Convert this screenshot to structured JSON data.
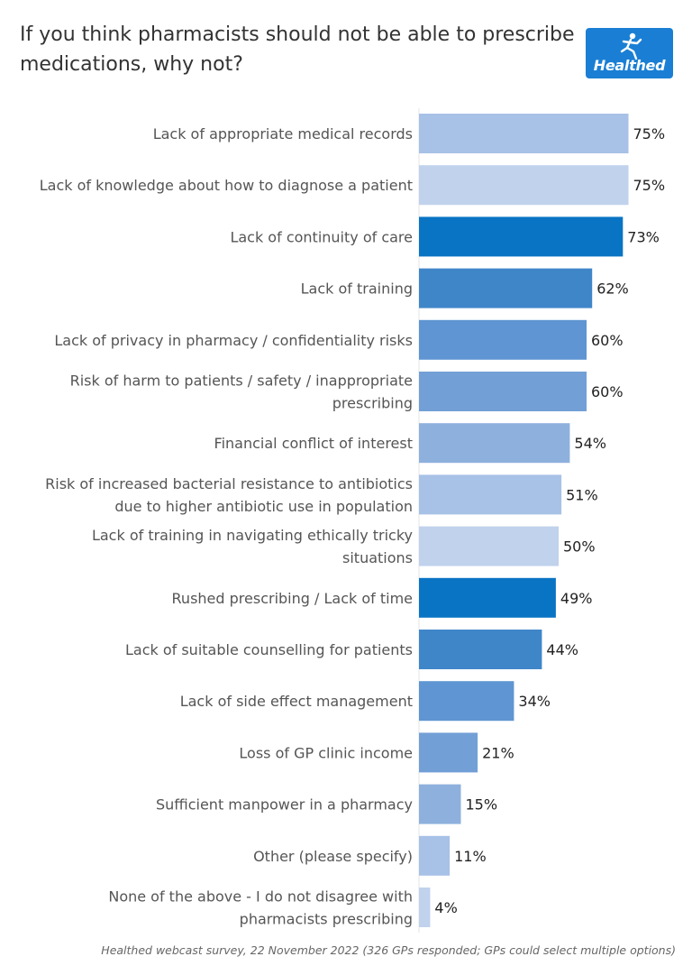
{
  "header": {
    "title": "If you think pharmacists should not be able to prescribe medications, why not?",
    "logo_text": "Healthed",
    "logo_icon": "running-figure-icon"
  },
  "chart_data": {
    "type": "bar",
    "orientation": "horizontal",
    "title": "If you think pharmacists should not be able to prescribe medications, why not?",
    "xlabel": "",
    "ylabel": "",
    "xlim": [
      0,
      100
    ],
    "grid": false,
    "legend": "none",
    "value_suffix": "%",
    "categories": [
      [
        "Lack of appropriate medical records"
      ],
      [
        "Lack of knowledge about how to diagnose a patient"
      ],
      [
        "Lack of continuity of care"
      ],
      [
        "Lack of training"
      ],
      [
        "Lack of privacy in pharmacy / confidentiality risks"
      ],
      [
        "Risk of harm to patients / safety / inappropriate",
        "prescribing"
      ],
      [
        "Financial conflict of interest"
      ],
      [
        "Risk of increased bacterial resistance to antibiotics",
        "due to higher antibiotic use in population"
      ],
      [
        "Lack of training in navigating ethically tricky",
        "situations"
      ],
      [
        "Rushed prescribing / Lack of time"
      ],
      [
        "Lack of suitable counselling for patients"
      ],
      [
        "Lack of side effect management"
      ],
      [
        "Loss of GP clinic income"
      ],
      [
        "Sufficient manpower in a pharmacy"
      ],
      [
        "Other (please specify)"
      ],
      [
        "None of the above - I do not disagree with",
        "pharmacists prescribing"
      ]
    ],
    "values": [
      75,
      75,
      73,
      62,
      60,
      60,
      54,
      51,
      50,
      49,
      44,
      34,
      21,
      15,
      11,
      4
    ],
    "value_labels": [
      "75%",
      "75%",
      "73%",
      "62%",
      "60%",
      "60%",
      "54%",
      "51%",
      "50%",
      "49%",
      "44%",
      "34%",
      "21%",
      "15%",
      "11%",
      "4%"
    ],
    "colors": [
      "#a8c1e6",
      "#c0d2ec",
      "#0a74c4",
      "#3f86c9",
      "#5e95d2",
      "#729fd6",
      "#8eb0dd",
      "#a8c1e6",
      "#c0d2ec",
      "#0a74c4",
      "#3f86c9",
      "#5e95d2",
      "#729fd6",
      "#8eb0dd",
      "#a8c1e6",
      "#c0d2ec"
    ]
  },
  "footnote": "Healthed webcast survey, 22 November 2022 (326 GPs responded; GPs could select multiple options)"
}
